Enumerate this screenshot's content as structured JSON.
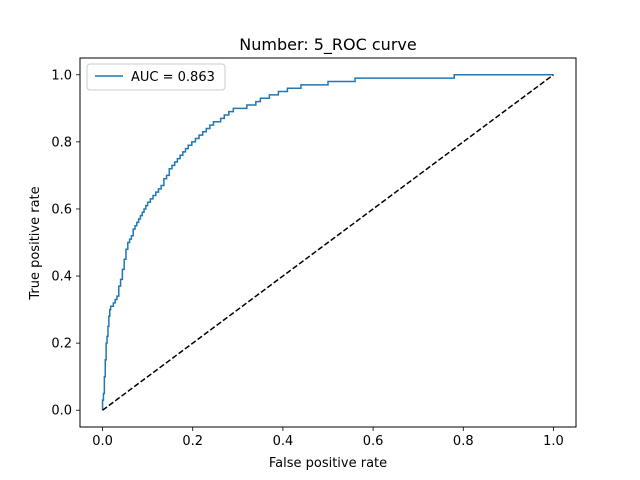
{
  "chart_data": {
    "type": "line",
    "title": "Number: 5_ROC curve",
    "xlabel": "False positive rate",
    "ylabel": "True positive rate",
    "xlim": [
      -0.05,
      1.05
    ],
    "ylim": [
      -0.05,
      1.05
    ],
    "xticks": [
      0.0,
      0.2,
      0.4,
      0.6,
      0.8,
      1.0
    ],
    "yticks": [
      0.0,
      0.2,
      0.4,
      0.6,
      0.8,
      1.0
    ],
    "xtick_labels": [
      "0.0",
      "0.2",
      "0.4",
      "0.6",
      "0.8",
      "1.0"
    ],
    "ytick_labels": [
      "0.0",
      "0.2",
      "0.4",
      "0.6",
      "0.8",
      "1.0"
    ],
    "grid": false,
    "legend_position": "upper-left",
    "series": [
      {
        "name": "AUC = 0.863",
        "color": "#1f77b4",
        "style": "step",
        "x": [
          0.0,
          0.0,
          0.002,
          0.004,
          0.006,
          0.008,
          0.01,
          0.012,
          0.014,
          0.016,
          0.018,
          0.02,
          0.024,
          0.028,
          0.032,
          0.036,
          0.04,
          0.044,
          0.048,
          0.052,
          0.056,
          0.06,
          0.064,
          0.068,
          0.072,
          0.076,
          0.08,
          0.084,
          0.088,
          0.092,
          0.096,
          0.1,
          0.106,
          0.112,
          0.118,
          0.124,
          0.13,
          0.136,
          0.142,
          0.148,
          0.154,
          0.16,
          0.166,
          0.172,
          0.178,
          0.184,
          0.19,
          0.198,
          0.206,
          0.214,
          0.222,
          0.23,
          0.238,
          0.246,
          0.254,
          0.262,
          0.27,
          0.28,
          0.29,
          0.3,
          0.31,
          0.32,
          0.33,
          0.34,
          0.35,
          0.36,
          0.37,
          0.38,
          0.39,
          0.4,
          0.41,
          0.42,
          0.43,
          0.44,
          0.45,
          0.46,
          0.47,
          0.48,
          0.5,
          0.52,
          0.54,
          0.56,
          0.58,
          0.6,
          0.65,
          0.7,
          0.75,
          0.78,
          0.8,
          0.9,
          1.0
        ],
        "y": [
          0.0,
          0.03,
          0.05,
          0.1,
          0.15,
          0.2,
          0.22,
          0.25,
          0.28,
          0.3,
          0.31,
          0.31,
          0.32,
          0.33,
          0.34,
          0.37,
          0.39,
          0.42,
          0.45,
          0.48,
          0.5,
          0.51,
          0.52,
          0.54,
          0.55,
          0.56,
          0.57,
          0.58,
          0.59,
          0.6,
          0.61,
          0.62,
          0.63,
          0.64,
          0.65,
          0.66,
          0.67,
          0.69,
          0.7,
          0.72,
          0.73,
          0.74,
          0.75,
          0.76,
          0.77,
          0.78,
          0.79,
          0.8,
          0.81,
          0.82,
          0.83,
          0.84,
          0.85,
          0.86,
          0.86,
          0.87,
          0.88,
          0.89,
          0.9,
          0.9,
          0.9,
          0.91,
          0.91,
          0.92,
          0.93,
          0.93,
          0.94,
          0.94,
          0.95,
          0.95,
          0.96,
          0.96,
          0.96,
          0.97,
          0.97,
          0.97,
          0.97,
          0.97,
          0.98,
          0.98,
          0.98,
          0.99,
          0.99,
          0.99,
          0.99,
          0.99,
          0.99,
          1.0,
          1.0,
          1.0,
          1.0
        ]
      },
      {
        "name": "",
        "color": "#000000",
        "style": "dashed",
        "x": [
          0.0,
          1.0
        ],
        "y": [
          0.0,
          1.0
        ]
      }
    ]
  }
}
